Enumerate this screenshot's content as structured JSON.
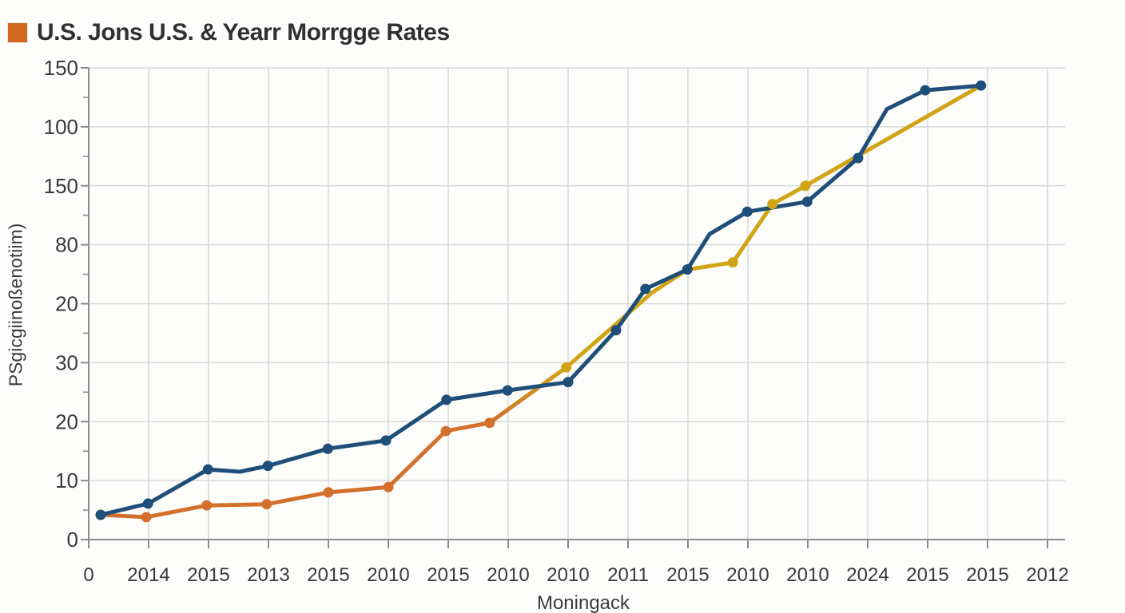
{
  "header": {
    "title": "U.S. Jons U.S. & Yearr Morrgge Rates",
    "legend_color": "#d2691e"
  },
  "axis_titles": {
    "x": "Moningack",
    "y": "PSgicgiinoßenotiim)"
  },
  "chart_data": {
    "type": "line",
    "title": "U.S. Jons U.S. & Yearr Morrgge Rates",
    "xlabel": "Moningack",
    "ylabel": "PSgicgiinoßenotiim)",
    "grid": true,
    "legend_position": "top-left",
    "x_tick_labels": [
      "0",
      "2014",
      "2015",
      "2013",
      "2015",
      "2010",
      "2015",
      "2010",
      "2010",
      "2011",
      "2015",
      "2010",
      "2010",
      "2024",
      "2015",
      "2015",
      "2012"
    ],
    "y_tick_labels": [
      "0",
      "10",
      "20",
      "30",
      "20",
      "80",
      "150",
      "100",
      "150"
    ],
    "units_note": "tick label text is non-monotonic as printed; series points are [x in tick-index 0-16, y in gridline units 0-8, marker 0/1]",
    "colors": {
      "grid": "#d9d9d9",
      "axis": "#8c8c8c",
      "tick_text": "#3a3a3a",
      "title_text": "#303030",
      "blue": "#1f4e79",
      "orange": "#d4702d",
      "gold": "#d1a416",
      "background": "#fdfdfb"
    },
    "series": [
      {
        "name": "mortgage-orange",
        "color": "#d4702d",
        "points": [
          [
            0.2,
            0.42,
            0
          ],
          [
            0.96,
            0.38,
            1
          ],
          [
            1.97,
            0.58,
            1
          ],
          [
            2.97,
            0.6,
            1
          ],
          [
            4.0,
            0.8,
            1
          ],
          [
            5.0,
            0.89,
            1
          ],
          [
            5.96,
            1.84,
            1
          ],
          [
            6.69,
            1.98,
            1
          ]
        ]
      },
      {
        "name": "mortgage-transition",
        "gradient": [
          "#d4702d",
          "#d1a416"
        ],
        "points": [
          [
            6.69,
            1.98,
            0
          ],
          [
            7.97,
            2.92,
            0
          ]
        ]
      },
      {
        "name": "mortgage-gold",
        "color": "#d1a416",
        "points": [
          [
            7.97,
            2.92,
            1
          ],
          [
            9.39,
            4.18,
            0
          ],
          [
            9.99,
            4.58,
            0
          ],
          [
            10.75,
            4.7,
            1
          ],
          [
            11.41,
            5.69,
            1
          ],
          [
            11.96,
            6.0,
            1
          ],
          [
            14.89,
            7.7,
            0
          ]
        ]
      },
      {
        "name": "rates-blue",
        "color": "#1f4e79",
        "points": [
          [
            0.2,
            0.42,
            1
          ],
          [
            0.99,
            0.61,
            1
          ],
          [
            1.99,
            1.19,
            1
          ],
          [
            2.52,
            1.15,
            0
          ],
          [
            2.99,
            1.25,
            1
          ],
          [
            3.99,
            1.54,
            1
          ],
          [
            4.96,
            1.68,
            1
          ],
          [
            5.97,
            2.37,
            1
          ],
          [
            6.99,
            2.53,
            1
          ],
          [
            8.0,
            2.67,
            1
          ],
          [
            8.8,
            3.55,
            1
          ],
          [
            9.29,
            4.25,
            1
          ],
          [
            9.99,
            4.58,
            1
          ],
          [
            10.36,
            5.18,
            0
          ],
          [
            10.99,
            5.56,
            1
          ],
          [
            11.99,
            5.73,
            1
          ],
          [
            12.84,
            6.47,
            1
          ],
          [
            13.32,
            7.3,
            0
          ],
          [
            13.96,
            7.62,
            1
          ],
          [
            14.89,
            7.7,
            1
          ]
        ]
      }
    ]
  }
}
